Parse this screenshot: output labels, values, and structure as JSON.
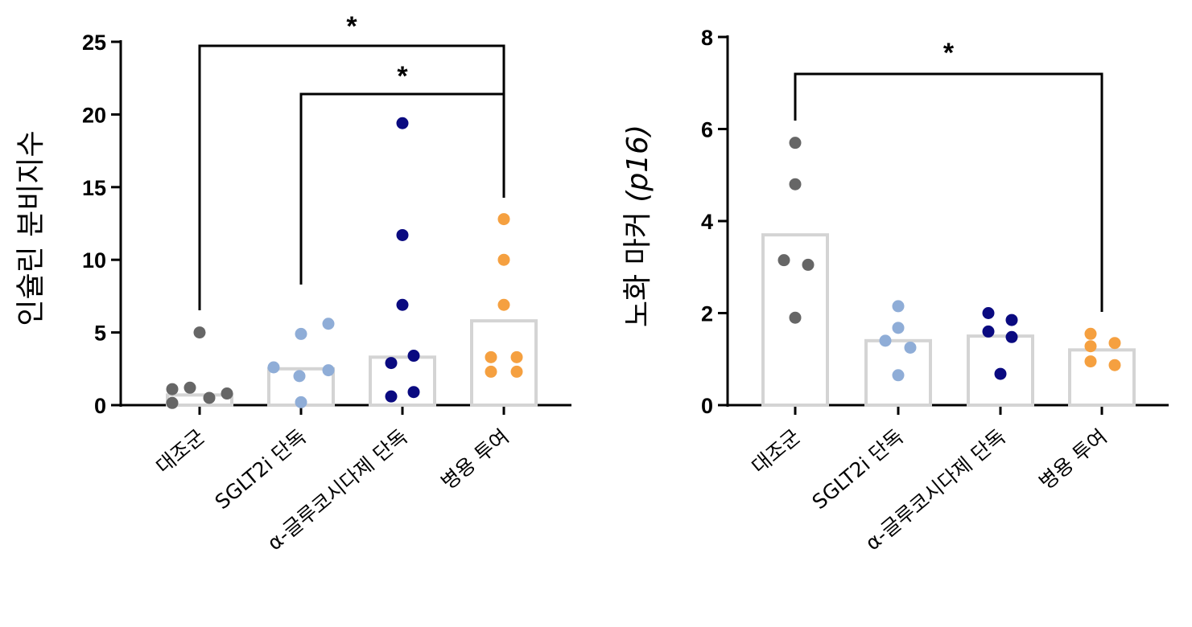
{
  "chart_data": [
    {
      "type": "bar",
      "ylabel": "인슐린 분비지수",
      "ylim": [
        0,
        25
      ],
      "yticks": [
        0,
        5,
        10,
        15,
        20,
        25
      ],
      "categories": [
        "대조군",
        "SGLT2i 단독",
        "α-글루코시다제 단독",
        "병용 투여"
      ],
      "bar_values": [
        0.7,
        2.5,
        3.3,
        5.8
      ],
      "points": [
        [
          5.0,
          1.1,
          1.2,
          0.5,
          0.8,
          0.15
        ],
        [
          2.6,
          4.9,
          5.6,
          2.0,
          2.4,
          0.2
        ],
        [
          19.4,
          11.7,
          6.9,
          3.4,
          2.9,
          0.9,
          0.6
        ],
        [
          12.8,
          10.0,
          6.9,
          3.3,
          3.3,
          2.3,
          2.3
        ]
      ],
      "point_colors": [
        "#666666",
        "#8fadd7",
        "#0a0a80",
        "#f5a040"
      ],
      "significance": [
        {
          "from": 0,
          "to": 3,
          "label": "*"
        },
        {
          "from": 1,
          "to": 3,
          "label": "*"
        }
      ]
    },
    {
      "type": "bar",
      "ylabel_main": "노화 마커 ",
      "ylabel_italic": "(p16)",
      "ylim": [
        0,
        8
      ],
      "yticks": [
        0,
        2,
        4,
        6,
        8
      ],
      "categories": [
        "대조군",
        "SGLT2i 단독",
        "α-글루코시다제 단독",
        "병용 투여"
      ],
      "bar_values": [
        3.7,
        1.4,
        1.5,
        1.2
      ],
      "points": [
        [
          5.7,
          4.8,
          3.15,
          3.05,
          1.9
        ],
        [
          2.15,
          1.68,
          1.4,
          1.25,
          0.65
        ],
        [
          2.0,
          1.85,
          1.6,
          1.48,
          0.68
        ],
        [
          1.55,
          1.35,
          1.28,
          0.95,
          0.87
        ]
      ],
      "point_colors": [
        "#666666",
        "#8fadd7",
        "#0a0a80",
        "#f5a040"
      ],
      "significance": [
        {
          "from": 0,
          "to": 3,
          "label": "*"
        }
      ]
    }
  ]
}
